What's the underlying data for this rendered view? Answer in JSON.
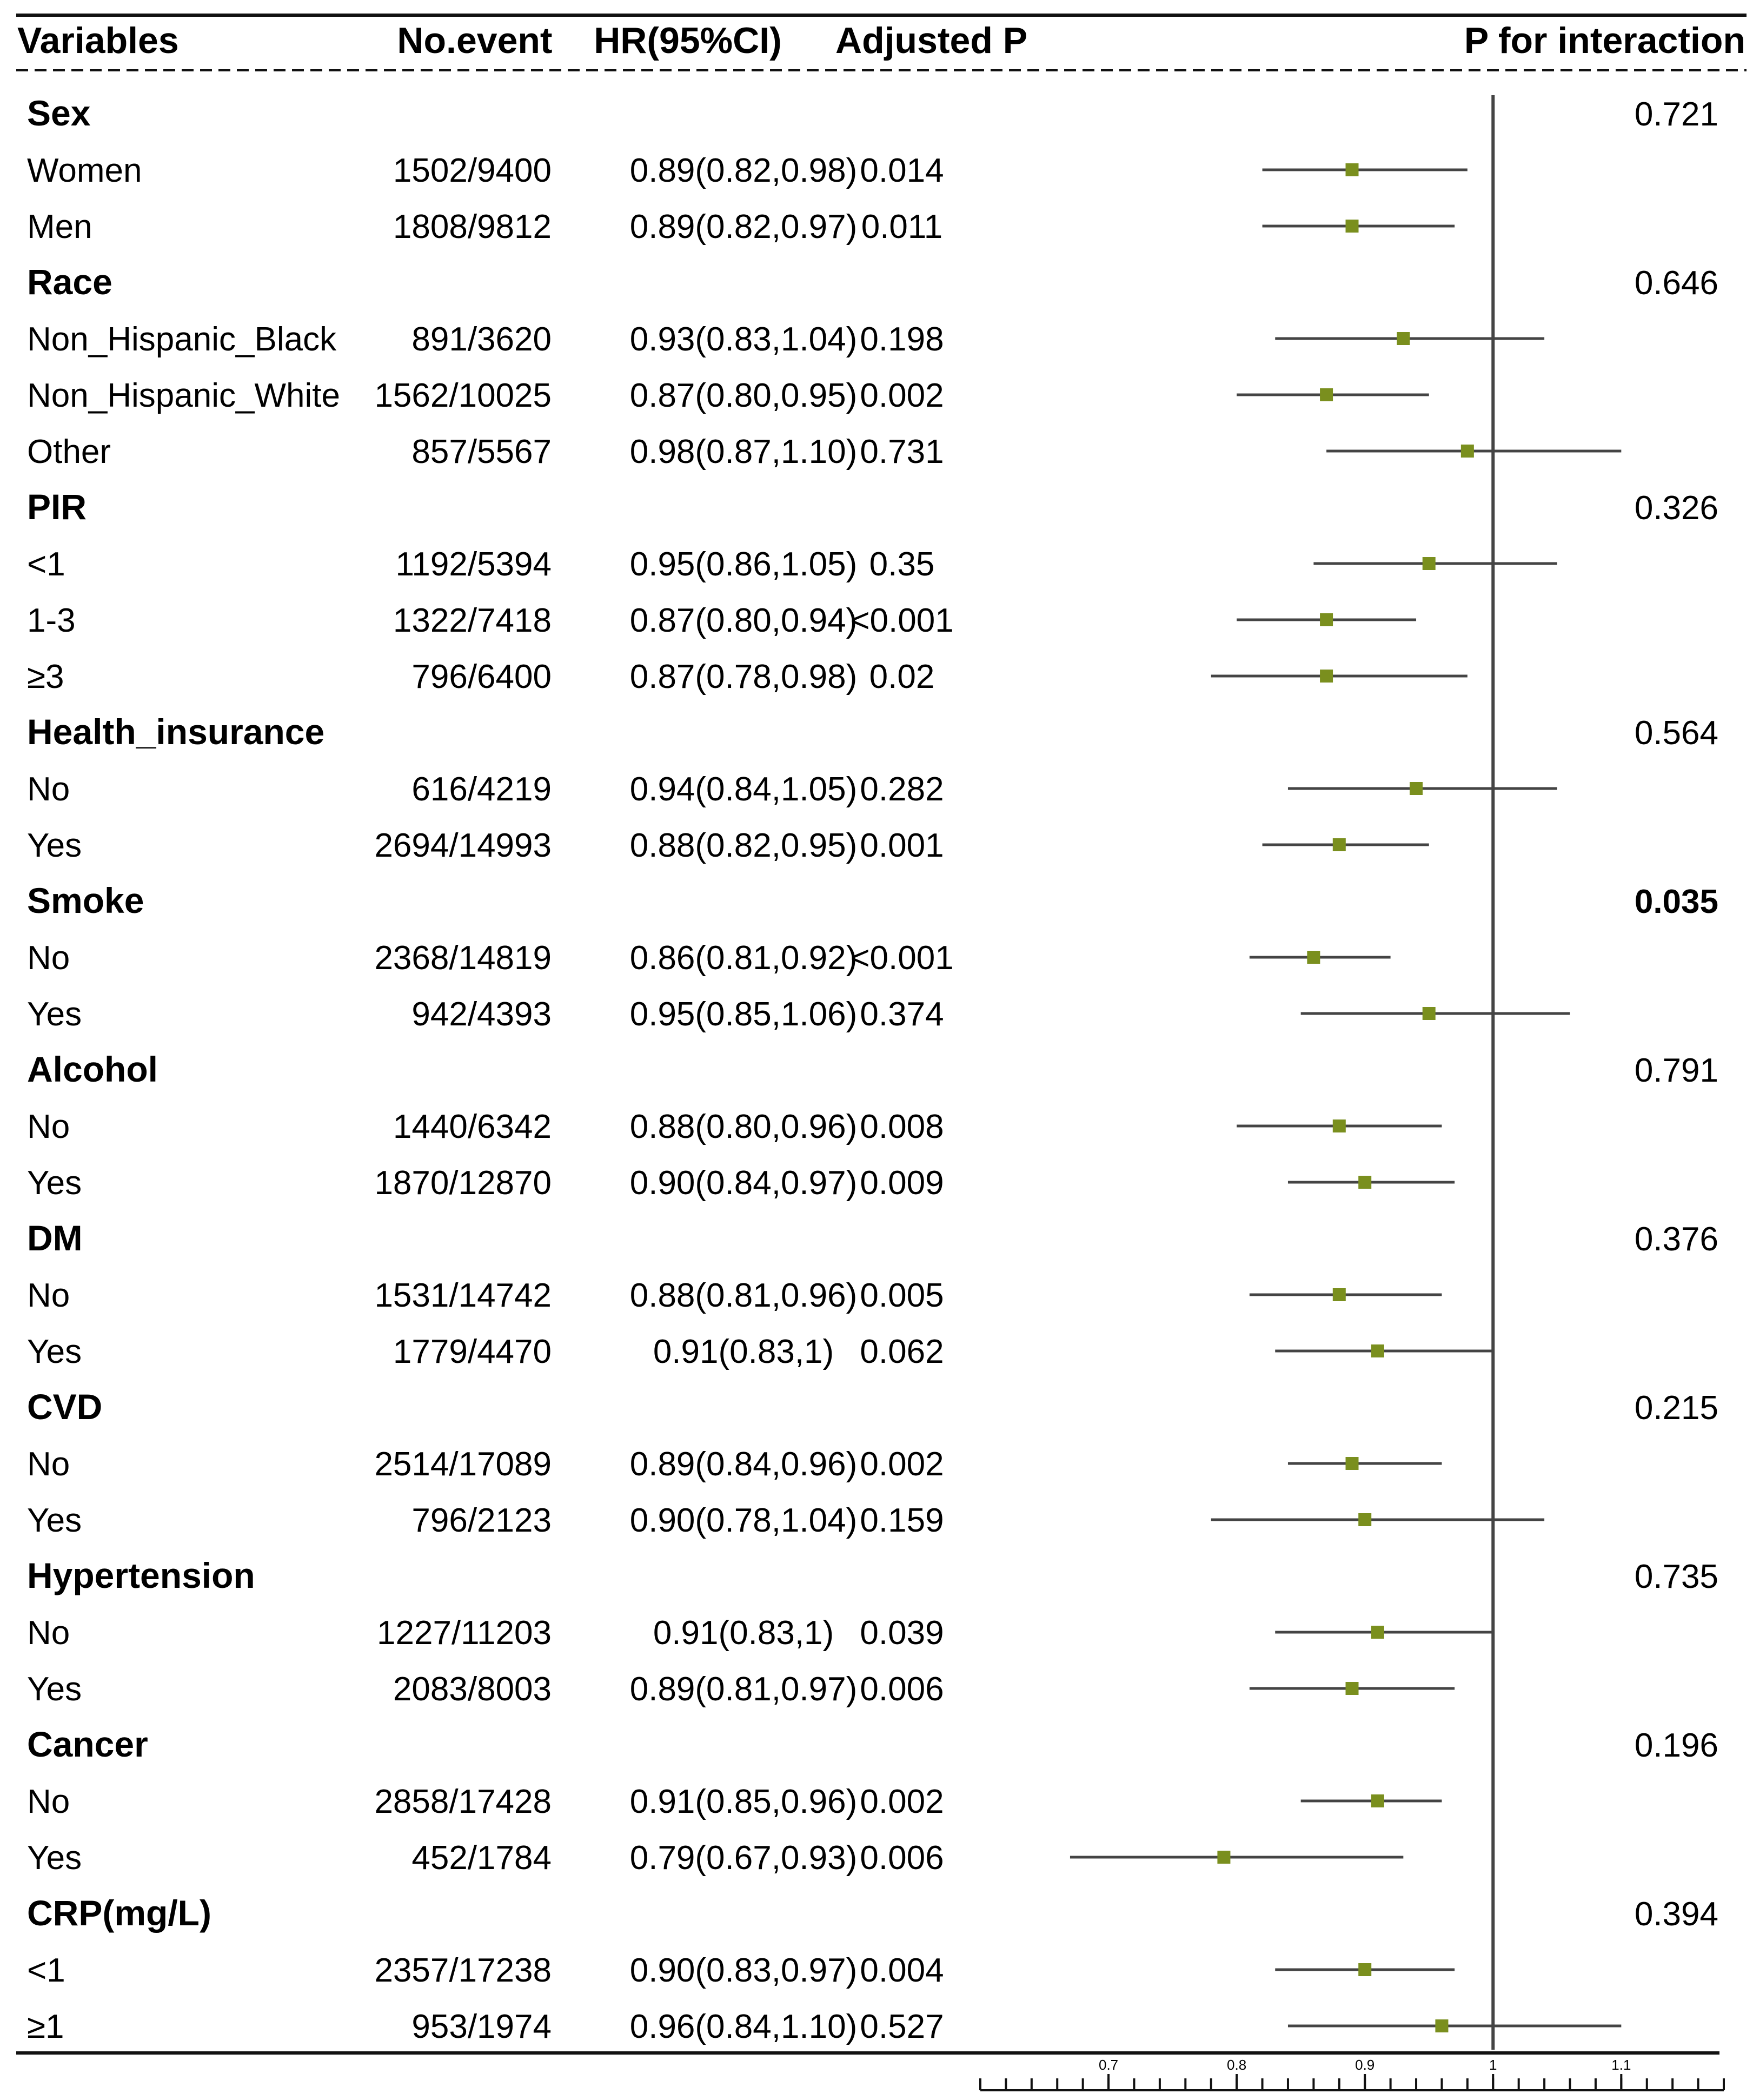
{
  "chart_data": {
    "type": "forest",
    "header": {
      "variables": "Variables",
      "events": "No.event",
      "hr": "HR(95%CI)",
      "adj_p": "Adjusted P",
      "p_int": "P for interaction"
    },
    "x_ticks": [
      "0.7",
      "0.8",
      "0.9",
      "1",
      "1.1"
    ],
    "xlim": [
      0.6,
      1.18
    ],
    "reference_line": 1,
    "colors": {
      "point": "#7a8f1e",
      "line": "#444444",
      "axis": "#111111"
    },
    "groups": [
      {
        "name": "Sex",
        "p_interaction": "0.721",
        "bold_p": false,
        "rows": [
          {
            "label": "Women",
            "events": "1502/9400",
            "hr_text": "0.89(0.82,0.98)",
            "p": "0.014",
            "hr": 0.89,
            "lo": 0.82,
            "hi": 0.98
          },
          {
            "label": "Men",
            "events": "1808/9812",
            "hr_text": "0.89(0.82,0.97)",
            "p": "0.011",
            "hr": 0.89,
            "lo": 0.82,
            "hi": 0.97
          }
        ]
      },
      {
        "name": "Race",
        "p_interaction": "0.646",
        "bold_p": false,
        "rows": [
          {
            "label": "Non_Hispanic_Black",
            "events": "891/3620",
            "hr_text": "0.93(0.83,1.04)",
            "p": "0.198",
            "hr": 0.93,
            "lo": 0.83,
            "hi": 1.04
          },
          {
            "label": "Non_Hispanic_White",
            "events": "1562/10025",
            "hr_text": "0.87(0.80,0.95)",
            "p": "0.002",
            "hr": 0.87,
            "lo": 0.8,
            "hi": 0.95
          },
          {
            "label": "Other",
            "events": "857/5567",
            "hr_text": "0.98(0.87,1.10)",
            "p": "0.731",
            "hr": 0.98,
            "lo": 0.87,
            "hi": 1.1
          }
        ]
      },
      {
        "name": "PIR",
        "p_interaction": "0.326",
        "bold_p": false,
        "rows": [
          {
            "label": "<1",
            "events": "1192/5394",
            "hr_text": "0.95(0.86,1.05)",
            "p": "0.35",
            "hr": 0.95,
            "lo": 0.86,
            "hi": 1.05
          },
          {
            "label": "1-3",
            "events": "1322/7418",
            "hr_text": "0.87(0.80,0.94)",
            "p": "<0.001",
            "hr": 0.87,
            "lo": 0.8,
            "hi": 0.94
          },
          {
            "label": "≥3",
            "events": "796/6400",
            "hr_text": "0.87(0.78,0.98)",
            "p": "0.02",
            "hr": 0.87,
            "lo": 0.78,
            "hi": 0.98
          }
        ]
      },
      {
        "name": "Health_insurance",
        "p_interaction": "0.564",
        "bold_p": false,
        "rows": [
          {
            "label": "No",
            "events": "616/4219",
            "hr_text": "0.94(0.84,1.05)",
            "p": "0.282",
            "hr": 0.94,
            "lo": 0.84,
            "hi": 1.05
          },
          {
            "label": "Yes",
            "events": "2694/14993",
            "hr_text": "0.88(0.82,0.95)",
            "p": "0.001",
            "hr": 0.88,
            "lo": 0.82,
            "hi": 0.95
          }
        ]
      },
      {
        "name": "Smoke",
        "p_interaction": "0.035",
        "bold_p": true,
        "rows": [
          {
            "label": "No",
            "events": "2368/14819",
            "hr_text": "0.86(0.81,0.92)",
            "p": "<0.001",
            "hr": 0.86,
            "lo": 0.81,
            "hi": 0.92
          },
          {
            "label": "Yes",
            "events": "942/4393",
            "hr_text": "0.95(0.85,1.06)",
            "p": "0.374",
            "hr": 0.95,
            "lo": 0.85,
            "hi": 1.06
          }
        ]
      },
      {
        "name": "Alcohol",
        "p_interaction": "0.791",
        "bold_p": false,
        "rows": [
          {
            "label": "No",
            "events": "1440/6342",
            "hr_text": "0.88(0.80,0.96)",
            "p": "0.008",
            "hr": 0.88,
            "lo": 0.8,
            "hi": 0.96
          },
          {
            "label": "Yes",
            "events": "1870/12870",
            "hr_text": "0.90(0.84,0.97)",
            "p": "0.009",
            "hr": 0.9,
            "lo": 0.84,
            "hi": 0.97
          }
        ]
      },
      {
        "name": "DM",
        "p_interaction": "0.376",
        "bold_p": false,
        "rows": [
          {
            "label": "No",
            "events": "1531/14742",
            "hr_text": "0.88(0.81,0.96)",
            "p": "0.005",
            "hr": 0.88,
            "lo": 0.81,
            "hi": 0.96
          },
          {
            "label": "Yes",
            "events": "1779/4470",
            "hr_text": "0.91(0.83,1)",
            "p": "0.062",
            "hr": 0.91,
            "lo": 0.83,
            "hi": 1.0
          }
        ]
      },
      {
        "name": "CVD",
        "p_interaction": "0.215",
        "bold_p": false,
        "rows": [
          {
            "label": "No",
            "events": "2514/17089",
            "hr_text": "0.89(0.84,0.96)",
            "p": "0.002",
            "hr": 0.89,
            "lo": 0.84,
            "hi": 0.96
          },
          {
            "label": "Yes",
            "events": "796/2123",
            "hr_text": "0.90(0.78,1.04)",
            "p": "0.159",
            "hr": 0.9,
            "lo": 0.78,
            "hi": 1.04
          }
        ]
      },
      {
        "name": "Hypertension",
        "p_interaction": "0.735",
        "bold_p": false,
        "rows": [
          {
            "label": "No",
            "events": "1227/11203",
            "hr_text": "0.91(0.83,1)",
            "p": "0.039",
            "hr": 0.91,
            "lo": 0.83,
            "hi": 1.0
          },
          {
            "label": "Yes",
            "events": "2083/8003",
            "hr_text": "0.89(0.81,0.97)",
            "p": "0.006",
            "hr": 0.89,
            "lo": 0.81,
            "hi": 0.97
          }
        ]
      },
      {
        "name": "Cancer",
        "p_interaction": "0.196",
        "bold_p": false,
        "rows": [
          {
            "label": "No",
            "events": "2858/17428",
            "hr_text": "0.91(0.85,0.96)",
            "p": "0.002",
            "hr": 0.91,
            "lo": 0.85,
            "hi": 0.96
          },
          {
            "label": "Yes",
            "events": "452/1784",
            "hr_text": "0.79(0.67,0.93)",
            "p": "0.006",
            "hr": 0.79,
            "lo": 0.67,
            "hi": 0.93
          }
        ]
      },
      {
        "name": "CRP(mg/L)",
        "p_interaction": "0.394",
        "bold_p": false,
        "rows": [
          {
            "label": "<1",
            "events": "2357/17238",
            "hr_text": "0.90(0.83,0.97)",
            "p": "0.004",
            "hr": 0.9,
            "lo": 0.83,
            "hi": 0.97
          },
          {
            "label": "≥1",
            "events": "953/1974",
            "hr_text": "0.96(0.84,1.10)",
            "p": "0.527",
            "hr": 0.96,
            "lo": 0.84,
            "hi": 1.1
          }
        ]
      }
    ]
  }
}
